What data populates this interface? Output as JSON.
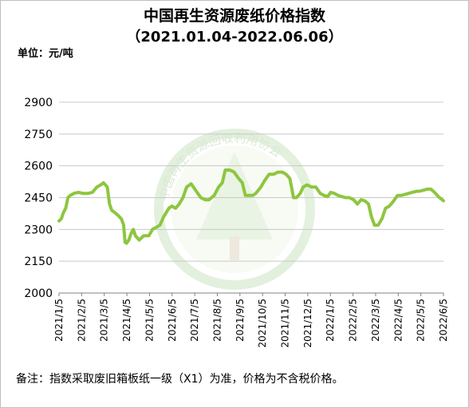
{
  "chart_data": {
    "type": "line",
    "title": "中国再生资源废纸价格指数",
    "subtitle": "（2021.01.04-2022.06.06）",
    "unit_label": "单位：元/吨",
    "footnote": "备注：指数采取废旧箱板纸一级（X1）为准，价格为不含税价格。",
    "watermark_text": "中国再生资源回收利用协会",
    "ylim": [
      2000,
      2900
    ],
    "yticks": [
      2000,
      2150,
      2300,
      2450,
      2600,
      2750,
      2900
    ],
    "ytick_labels": [
      "2000",
      "2150",
      "2300",
      "2450",
      "2600",
      "2750",
      "2900"
    ],
    "xtick_labels": [
      "2021/1/5",
      "2021/2/5",
      "2021/3/5",
      "2021/4/5",
      "2021/5/5",
      "2021/6/5",
      "2021/7/5",
      "2021/8/5",
      "2021/9/5",
      "2021/10/5",
      "2021/11/5",
      "2021/12/5",
      "2022/1/5",
      "2022/2/5",
      "2022/3/5",
      "2022/4/5",
      "2022/5/5",
      "2022/6/5"
    ],
    "xlim": [
      "2021-01-04",
      "2022-06-06"
    ],
    "grid": "horizontal",
    "series_color": "#8dc63f",
    "series": [
      {
        "x": [
          "2021-01-04",
          "2021-01-07",
          "2021-01-10",
          "2021-01-13",
          "2021-01-16",
          "2021-01-19",
          "2021-01-24",
          "2021-01-30",
          "2021-02-05",
          "2021-02-12",
          "2021-02-18",
          "2021-02-24",
          "2021-03-01",
          "2021-03-05",
          "2021-03-10",
          "2021-03-13",
          "2021-03-16",
          "2021-03-20",
          "2021-03-25",
          "2021-03-29",
          "2021-04-01",
          "2021-04-03",
          "2021-04-05",
          "2021-04-08",
          "2021-04-11",
          "2021-04-14",
          "2021-04-17",
          "2021-04-22",
          "2021-04-28",
          "2021-05-05",
          "2021-05-10",
          "2021-05-15",
          "2021-05-20",
          "2021-05-25",
          "2021-06-01",
          "2021-06-05",
          "2021-06-10",
          "2021-06-15",
          "2021-06-20",
          "2021-06-25",
          "2021-07-01",
          "2021-07-08",
          "2021-07-14",
          "2021-07-20",
          "2021-07-25",
          "2021-08-01",
          "2021-08-07",
          "2021-08-12",
          "2021-08-16",
          "2021-08-22",
          "2021-08-28",
          "2021-09-03",
          "2021-09-08",
          "2021-09-12",
          "2021-09-17",
          "2021-09-22",
          "2021-09-26",
          "2021-10-03",
          "2021-10-08",
          "2021-10-14",
          "2021-10-20",
          "2021-10-26",
          "2021-11-01",
          "2021-11-06",
          "2021-11-11",
          "2021-11-16",
          "2021-11-20",
          "2021-11-25",
          "2021-11-29",
          "2021-12-04",
          "2021-12-10",
          "2021-12-16",
          "2021-12-22",
          "2021-12-27",
          "2022-01-01",
          "2022-01-05",
          "2022-01-10",
          "2022-01-15",
          "2022-01-20",
          "2022-01-25",
          "2022-01-30",
          "2022-02-05",
          "2022-02-10",
          "2022-02-15",
          "2022-02-20",
          "2022-02-25",
          "2022-03-01",
          "2022-03-05",
          "2022-03-10",
          "2022-03-15",
          "2022-03-20",
          "2022-03-25",
          "2022-03-30",
          "2022-04-05",
          "2022-04-10",
          "2022-04-15",
          "2022-04-20",
          "2022-04-25",
          "2022-05-01",
          "2022-05-05",
          "2022-05-10",
          "2022-05-15",
          "2022-05-20",
          "2022-05-25",
          "2022-05-30",
          "2022-06-06"
        ],
        "y": [
          2340,
          2350,
          2380,
          2400,
          2450,
          2460,
          2470,
          2475,
          2470,
          2470,
          2475,
          2500,
          2510,
          2520,
          2500,
          2420,
          2390,
          2380,
          2365,
          2350,
          2320,
          2240,
          2235,
          2250,
          2280,
          2300,
          2270,
          2250,
          2270,
          2270,
          2300,
          2310,
          2320,
          2360,
          2400,
          2410,
          2400,
          2420,
          2450,
          2500,
          2515,
          2480,
          2450,
          2440,
          2440,
          2460,
          2500,
          2520,
          2580,
          2580,
          2570,
          2540,
          2520,
          2460,
          2460,
          2460,
          2470,
          2500,
          2530,
          2560,
          2560,
          2570,
          2570,
          2560,
          2540,
          2450,
          2450,
          2470,
          2500,
          2510,
          2500,
          2500,
          2470,
          2460,
          2455,
          2475,
          2470,
          2460,
          2455,
          2450,
          2450,
          2440,
          2420,
          2440,
          2435,
          2420,
          2360,
          2320,
          2320,
          2350,
          2400,
          2410,
          2430,
          2460,
          2460,
          2465,
          2470,
          2475,
          2480,
          2480,
          2485,
          2490,
          2490,
          2475,
          2455,
          2435
        ]
      }
    ]
  }
}
